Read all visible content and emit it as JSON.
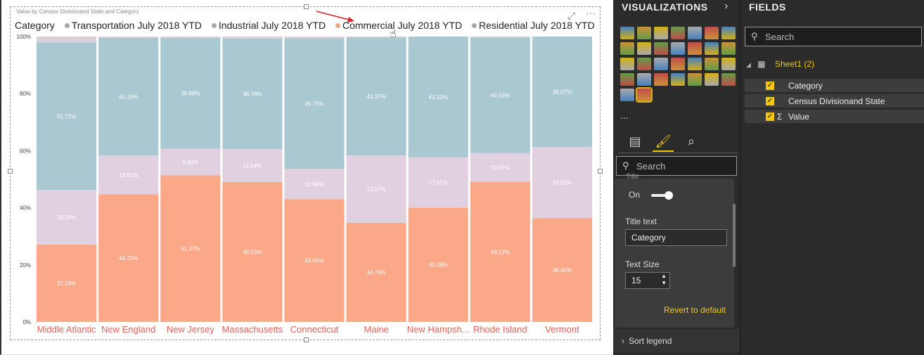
{
  "visual": {
    "title": "Value by Census Divisionand State and Category",
    "focus_icon": "focus-mode-icon",
    "more_icon": "more-options-icon"
  },
  "legend": {
    "title": "Category",
    "items": [
      {
        "label": "Transportation July 2018 YTD",
        "color": "#a8a8a8"
      },
      {
        "label": "Industrial July 2018 YTD",
        "color": "#a8a8a8"
      },
      {
        "label": "Commercial July 2018 YTD",
        "color": "#f4a582"
      },
      {
        "label": "Residential July 2018 YTD",
        "color": "#a8a8a8"
      }
    ]
  },
  "chart_data": {
    "type": "bar",
    "subtype": "100% stacked column",
    "title": "Value by Census Divisionand State and Category",
    "ylabel": "",
    "xlabel": "",
    "ylim": [
      0,
      100
    ],
    "yticks": [
      "0%",
      "20%",
      "40%",
      "60%",
      "80%",
      "100%"
    ],
    "categories": [
      "Middle Atlantic",
      "New England",
      "New Jersey",
      "Massachusetts",
      "Connecticut",
      "Maine",
      "New Hampsh...",
      "Rhode Island",
      "Vermont"
    ],
    "series": [
      {
        "name": "Commercial July 2018 YTD",
        "color": "#fba889",
        "values": [
          27.15,
          44.72,
          51.37,
          49.03,
          43.05,
          34.76,
          40.08,
          49.12,
          36.41
        ],
        "labels": [
          "27.15%",
          "44.72%",
          "51.37%",
          "49.03%",
          "43.05%",
          "34.76%",
          "40.08%",
          "49.12%",
          "36.41%"
        ]
      },
      {
        "name": "Industrial July 2018 YTD",
        "color": "#e1d1e0",
        "values": [
          19.09,
          13.61,
          9.33,
          11.54,
          10.56,
          23.57,
          17.61,
          10.02,
          24.92
        ],
        "labels": [
          "19.09%",
          "13.61%",
          "9.33%",
          "11.54%",
          "10.56%",
          "23.57%",
          "17.61%",
          "10.02%",
          "24.92%"
        ]
      },
      {
        "name": "Residential July 2018 YTD",
        "color": "#a9c8d2",
        "values": [
          51.72,
          41.18,
          38.88,
          38.76,
          45.75,
          41.37,
          42.31,
          40.5,
          38.67
        ],
        "labels": [
          "51.72%",
          "41.18%",
          "38.88%",
          "38.76%",
          "45.75%",
          "41.37%",
          "42.31%",
          "40.50%",
          "38.67%"
        ]
      },
      {
        "name": "Transportation July 2018 YTD",
        "color": "#d8d0d6",
        "values": [
          2.04,
          0.49,
          0.42,
          0.67,
          0.64,
          0.3,
          0.0,
          0.36,
          0.0
        ],
        "labels": []
      }
    ],
    "category_label_color": "#e0635a"
  },
  "viz_pane": {
    "header": "VISUALIZATIONS",
    "expand_icon": "chevron-right-icon",
    "icons": [
      "stacked-bar-icon",
      "stacked-column-icon",
      "clustered-bar-icon",
      "clustered-column-icon",
      "100-bar-icon",
      "100-column-icon",
      "line-icon",
      "area-icon",
      "stacked-area-icon",
      "line-column-icon",
      "line-clustered-icon",
      "ribbon-icon",
      "waterfall-icon",
      "scatter-icon",
      "pie-icon",
      "donut-icon",
      "treemap-icon",
      "map-icon",
      "filled-map-icon",
      "funnel-icon",
      "gauge-icon",
      "card-icon",
      "multirow-card-icon",
      "kpi-icon",
      "slicer-icon",
      "table-icon",
      "matrix-icon",
      "r-visual-icon",
      "globe-icon",
      "custom-visual-icon"
    ],
    "more_label": "...",
    "tabs": [
      "fields-tab-icon",
      "format-tab-icon",
      "analytics-tab-icon"
    ],
    "search_placeholder": "Search",
    "title_section_label": "Title",
    "toggle_label": "On",
    "title_text_label": "Title text",
    "title_text_value": "Category",
    "text_size_label": "Text Size",
    "text_size_value": "15",
    "revert_label": "Revert to default",
    "sort_legend_label": "Sort legend"
  },
  "fields_pane": {
    "header": "FIELDS",
    "search_placeholder": "Search",
    "table_name": "Sheet1 (2)",
    "fields": [
      {
        "name": "Category",
        "sigma": ""
      },
      {
        "name": "Census Divisionand State",
        "sigma": ""
      },
      {
        "name": "Value",
        "sigma": "Σ"
      }
    ]
  }
}
